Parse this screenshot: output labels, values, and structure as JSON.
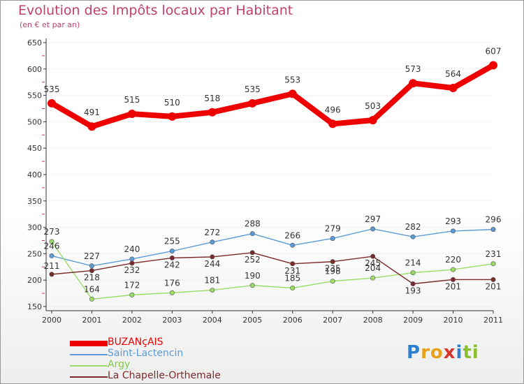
{
  "title": "Evolution des Impôts locaux par Habitant",
  "subtitle": "(en € et par an)",
  "brand": {
    "letters": [
      "P",
      "r",
      "o",
      "x",
      "i",
      "t",
      "i"
    ],
    "colors": [
      "#2f7fd0",
      "#e8a21a",
      "#e8a21a",
      "#d9342b",
      "#2f7fd0",
      "#8cbf2f",
      "#8cbf2f"
    ]
  },
  "chart_data": {
    "type": "line",
    "title": "Evolution des Impôts locaux par Habitant",
    "subtitle": "(en € et par an)",
    "x": [
      "2000",
      "2001",
      "2002",
      "2003",
      "2004",
      "2005",
      "2006",
      "2007",
      "2008",
      "2009",
      "2010",
      "2011"
    ],
    "ylim": [
      150,
      650
    ],
    "yticks": [
      150,
      200,
      250,
      300,
      350,
      400,
      450,
      500,
      550,
      600,
      650
    ],
    "legend": "bottom-left",
    "series": [
      {
        "name": "BUZANçAIS",
        "color": "#ee0000",
        "values": [
          535,
          491,
          515,
          510,
          518,
          535,
          553,
          496,
          503,
          573,
          564,
          607
        ]
      },
      {
        "name": "Saint-Lactencin",
        "color": "#5b9bd5",
        "values": [
          246,
          227,
          240,
          255,
          272,
          288,
          266,
          279,
          297,
          282,
          293,
          296
        ]
      },
      {
        "name": "Argy",
        "color": "#99dd66",
        "values": [
          273,
          164,
          172,
          176,
          181,
          190,
          185,
          198,
          204,
          214,
          220,
          231
        ]
      },
      {
        "name": "La Chapelle-Orthemale",
        "color": "#7a2a2a",
        "values": [
          211,
          218,
          232,
          242,
          244,
          252,
          231,
          235,
          245,
          193,
          201,
          201
        ]
      }
    ]
  }
}
